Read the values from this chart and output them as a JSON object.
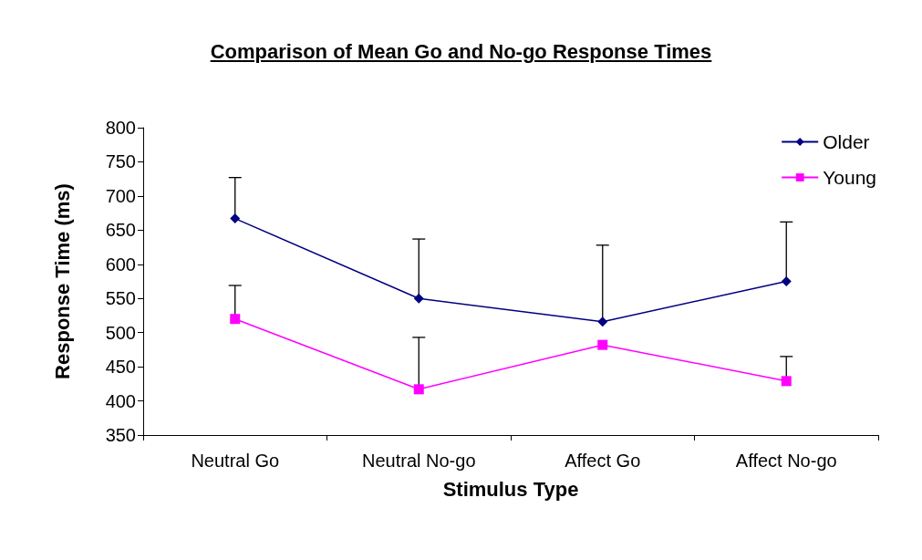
{
  "chart_data": {
    "type": "line",
    "title": "Comparison of Mean Go and No-go Response Times",
    "xlabel": "Stimulus Type",
    "ylabel": "Response Time (ms)",
    "categories": [
      "Neutral Go",
      "Neutral No-go",
      "Affect Go",
      "Affect No-go"
    ],
    "series": [
      {
        "name": "Older",
        "color": "#000080",
        "marker": "diamond",
        "values": [
          667,
          550,
          516,
          575
        ],
        "errors": [
          [
            667,
            727
          ],
          [
            550,
            637
          ],
          [
            516,
            628
          ],
          [
            575,
            662
          ]
        ]
      },
      {
        "name": "Young",
        "color": "#ff00ff",
        "marker": "square",
        "values": [
          520,
          417,
          482,
          429
        ],
        "errors": [
          [
            520,
            569
          ],
          [
            417,
            493
          ],
          null,
          [
            429,
            465
          ]
        ]
      }
    ],
    "ylim": [
      350,
      800
    ],
    "yticks": [
      350,
      400,
      450,
      500,
      550,
      600,
      650,
      700,
      750,
      800
    ],
    "grid": false,
    "legend": "top right",
    "line_style": "solid"
  }
}
